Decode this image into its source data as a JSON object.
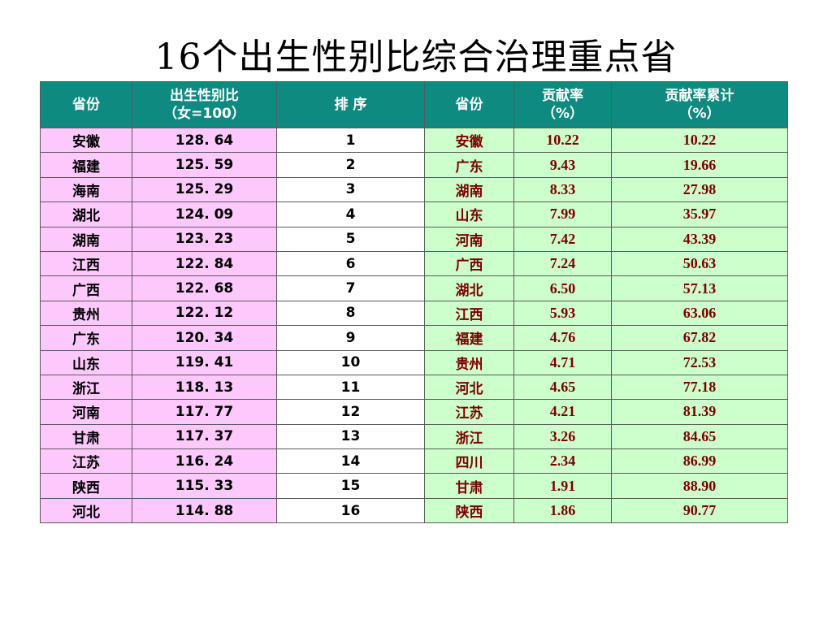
{
  "title": "16个出生性别比综合治理重点省",
  "headers": {
    "province": "省份",
    "ratio_line1": "出生性别比",
    "ratio_line2": "（女=100）",
    "rank": "排 序",
    "province2": "省份",
    "contrib_line1": "贡献率",
    "contrib_line2": "（%）",
    "cum_line1": "贡献率累计",
    "cum_line2": "（%）"
  },
  "rows": [
    {
      "province": "安徽",
      "ratio": "128. 64",
      "rank": "1",
      "province2": "安徽",
      "contrib": "10.22",
      "cum": "10.22"
    },
    {
      "province": "福建",
      "ratio": "125. 59",
      "rank": "2",
      "province2": "广东",
      "contrib": "9.43",
      "cum": "19.66"
    },
    {
      "province": "海南",
      "ratio": "125. 29",
      "rank": "3",
      "province2": "湖南",
      "contrib": "8.33",
      "cum": "27.98"
    },
    {
      "province": "湖北",
      "ratio": "124. 09",
      "rank": "4",
      "province2": "山东",
      "contrib": "7.99",
      "cum": "35.97"
    },
    {
      "province": "湖南",
      "ratio": "123. 23",
      "rank": "5",
      "province2": "河南",
      "contrib": "7.42",
      "cum": "43.39"
    },
    {
      "province": "江西",
      "ratio": "122. 84",
      "rank": "6",
      "province2": "广西",
      "contrib": "7.24",
      "cum": "50.63"
    },
    {
      "province": "广西",
      "ratio": "122. 68",
      "rank": "7",
      "province2": "湖北",
      "contrib": "6.50",
      "cum": "57.13"
    },
    {
      "province": "贵州",
      "ratio": "122. 12",
      "rank": "8",
      "province2": "江西",
      "contrib": "5.93",
      "cum": "63.06"
    },
    {
      "province": "广东",
      "ratio": "120. 34",
      "rank": "9",
      "province2": "福建",
      "contrib": "4.76",
      "cum": "67.82"
    },
    {
      "province": "山东",
      "ratio": "119. 41",
      "rank": "10",
      "province2": "贵州",
      "contrib": "4.71",
      "cum": "72.53"
    },
    {
      "province": "浙江",
      "ratio": "118. 13",
      "rank": "11",
      "province2": "河北",
      "contrib": "4.65",
      "cum": "77.18"
    },
    {
      "province": "河南",
      "ratio": "117. 77",
      "rank": "12",
      "province2": "江苏",
      "contrib": "4.21",
      "cum": "81.39"
    },
    {
      "province": "甘肃",
      "ratio": "117. 37",
      "rank": "13",
      "province2": "浙江",
      "contrib": "3.26",
      "cum": "84.65"
    },
    {
      "province": "江苏",
      "ratio": "116. 24",
      "rank": "14",
      "province2": "四川",
      "contrib": "2.34",
      "cum": "86.99"
    },
    {
      "province": "陕西",
      "ratio": "115. 33",
      "rank": "15",
      "province2": "甘肃",
      "contrib": "1.91",
      "cum": "88.90"
    },
    {
      "province": "河北",
      "ratio": "114. 88",
      "rank": "16",
      "province2": "陕西",
      "contrib": "1.86",
      "cum": "90.77"
    }
  ],
  "colors": {
    "header_bg": "#0e8a80",
    "left_bg": "#fdc9fd",
    "right_bg": "#ccffcc",
    "right_text": "#7a0000"
  }
}
